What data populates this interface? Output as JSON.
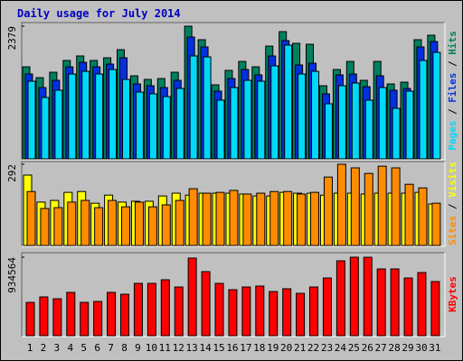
{
  "title": "Daily usage for July 2014",
  "legend_separator": " / ",
  "chart_data": [
    {
      "type": "bar",
      "ylim": [
        0,
        2379
      ],
      "yticks": [
        2379
      ],
      "series": [
        {
          "name": "Hits",
          "color": "#008060",
          "values": [
            1650,
            1456,
            1553,
            1764,
            1845,
            1764,
            1812,
            1958,
            1489,
            1424,
            1440,
            1553,
            2379,
            2136,
            1327,
            1586,
            1747,
            1650,
            2022,
            2281,
            2071,
            2055,
            1311,
            1602,
            1747,
            1408,
            1747,
            1343,
            1375,
            2136,
            2217
          ]
        },
        {
          "name": "Files",
          "color": "#0030e0",
          "values": [
            1521,
            1278,
            1408,
            1650,
            1731,
            1650,
            1699,
            1812,
            1343,
            1311,
            1278,
            1408,
            2184,
            2006,
            1214,
            1440,
            1602,
            1505,
            1845,
            2120,
            1683,
            1715,
            1165,
            1505,
            1521,
            1294,
            1489,
            1230,
            1262,
            2006,
            2103
          ]
        },
        {
          "name": "Pages",
          "color": "#00d8f8",
          "values": [
            1392,
            1100,
            1230,
            1521,
            1569,
            1521,
            1602,
            1424,
            1197,
            1165,
            1116,
            1262,
            1845,
            1828,
            1052,
            1278,
            1408,
            1392,
            1667,
            2039,
            1521,
            1569,
            987,
            1311,
            1359,
            1052,
            1278,
            906,
            1214,
            1764,
            1909
          ]
        }
      ]
    },
    {
      "type": "bar",
      "ylim": [
        0,
        292
      ],
      "yticks": [
        292
      ],
      "series": [
        {
          "name": "Visits",
          "color": "#ffff00",
          "values": [
            253,
            156,
            162,
            191,
            194,
            152,
            181,
            156,
            159,
            159,
            178,
            188,
            181,
            188,
            188,
            188,
            185,
            178,
            178,
            191,
            188,
            188,
            181,
            188,
            188,
            185,
            188,
            188,
            188,
            191,
            149
          ]
        },
        {
          "name": "Sites",
          "color": "#ff8c00",
          "values": [
            194,
            133,
            136,
            156,
            162,
            136,
            162,
            139,
            156,
            139,
            146,
            162,
            204,
            188,
            191,
            198,
            185,
            188,
            194,
            194,
            185,
            191,
            246,
            292,
            279,
            259,
            285,
            279,
            220,
            207,
            152
          ]
        }
      ]
    },
    {
      "type": "bar",
      "ylim": [
        0,
        934564
      ],
      "yticks": [
        934564
      ],
      "categories": [
        "1",
        "2",
        "3",
        "4",
        "5",
        "6",
        "7",
        "8",
        "9",
        "10",
        "11",
        "12",
        "13",
        "14",
        "15",
        "16",
        "17",
        "18",
        "19",
        "20",
        "21",
        "22",
        "23",
        "24",
        "25",
        "26",
        "27",
        "28",
        "29",
        "30",
        "31"
      ],
      "category_colors": [
        "#000",
        "#000",
        "#000",
        "#000",
        "#008060",
        "#008060",
        "#000",
        "#000",
        "#000",
        "#000",
        "#000",
        "#008060",
        "#008060",
        "#000",
        "#000",
        "#000",
        "#000",
        "#000",
        "#008060",
        "#008060",
        "#000",
        "#000",
        "#000",
        "#000",
        "#000",
        "#008060",
        "#008060",
        "#000",
        "#000",
        "#000",
        "#000"
      ],
      "series": [
        {
          "name": "KBytes",
          "color": "#ff0000",
          "values": [
            397000,
            462000,
            440000,
            516000,
            397000,
            408000,
            516000,
            494000,
            623000,
            623000,
            666000,
            580000,
            924000,
            763000,
            623000,
            548000,
            580000,
            591000,
            526000,
            559000,
            505000,
            580000,
            687000,
            892000,
            934564,
            934000,
            795000,
            795000,
            687000,
            752000,
            645000
          ]
        }
      ]
    }
  ]
}
